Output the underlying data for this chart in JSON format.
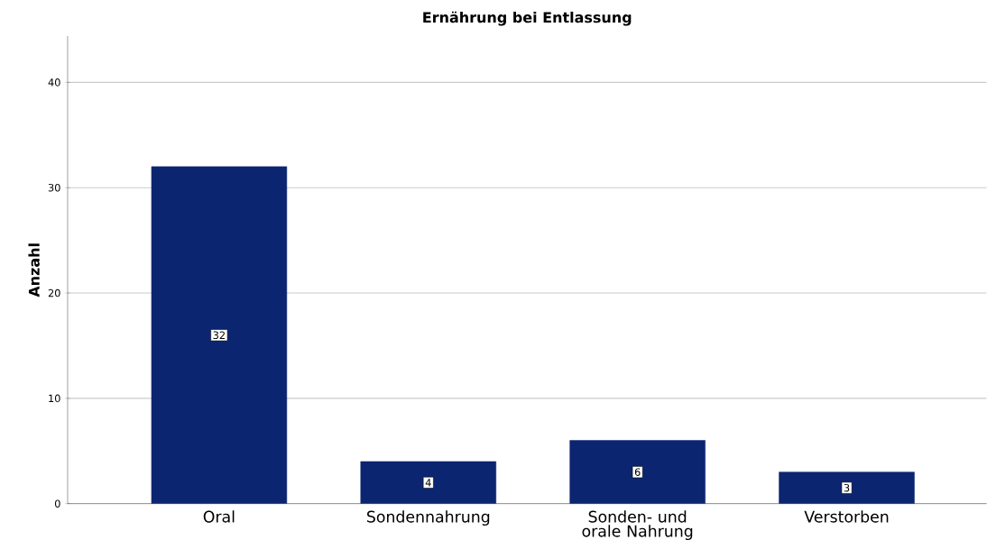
{
  "chart_data": {
    "type": "bar",
    "title": "Ernährung bei Entlassung",
    "ylabel": "Anzahl",
    "categories": [
      "Oral",
      "Sondennahrung",
      "Sonden- und orale Nahrung",
      "Verstorben"
    ],
    "values": [
      32,
      4,
      6,
      3
    ],
    "color": "#0c2570",
    "data_labels": true,
    "ylim": [
      0,
      44.4
    ],
    "yticks": [
      0,
      10,
      20,
      30,
      40
    ],
    "grid": "y"
  }
}
